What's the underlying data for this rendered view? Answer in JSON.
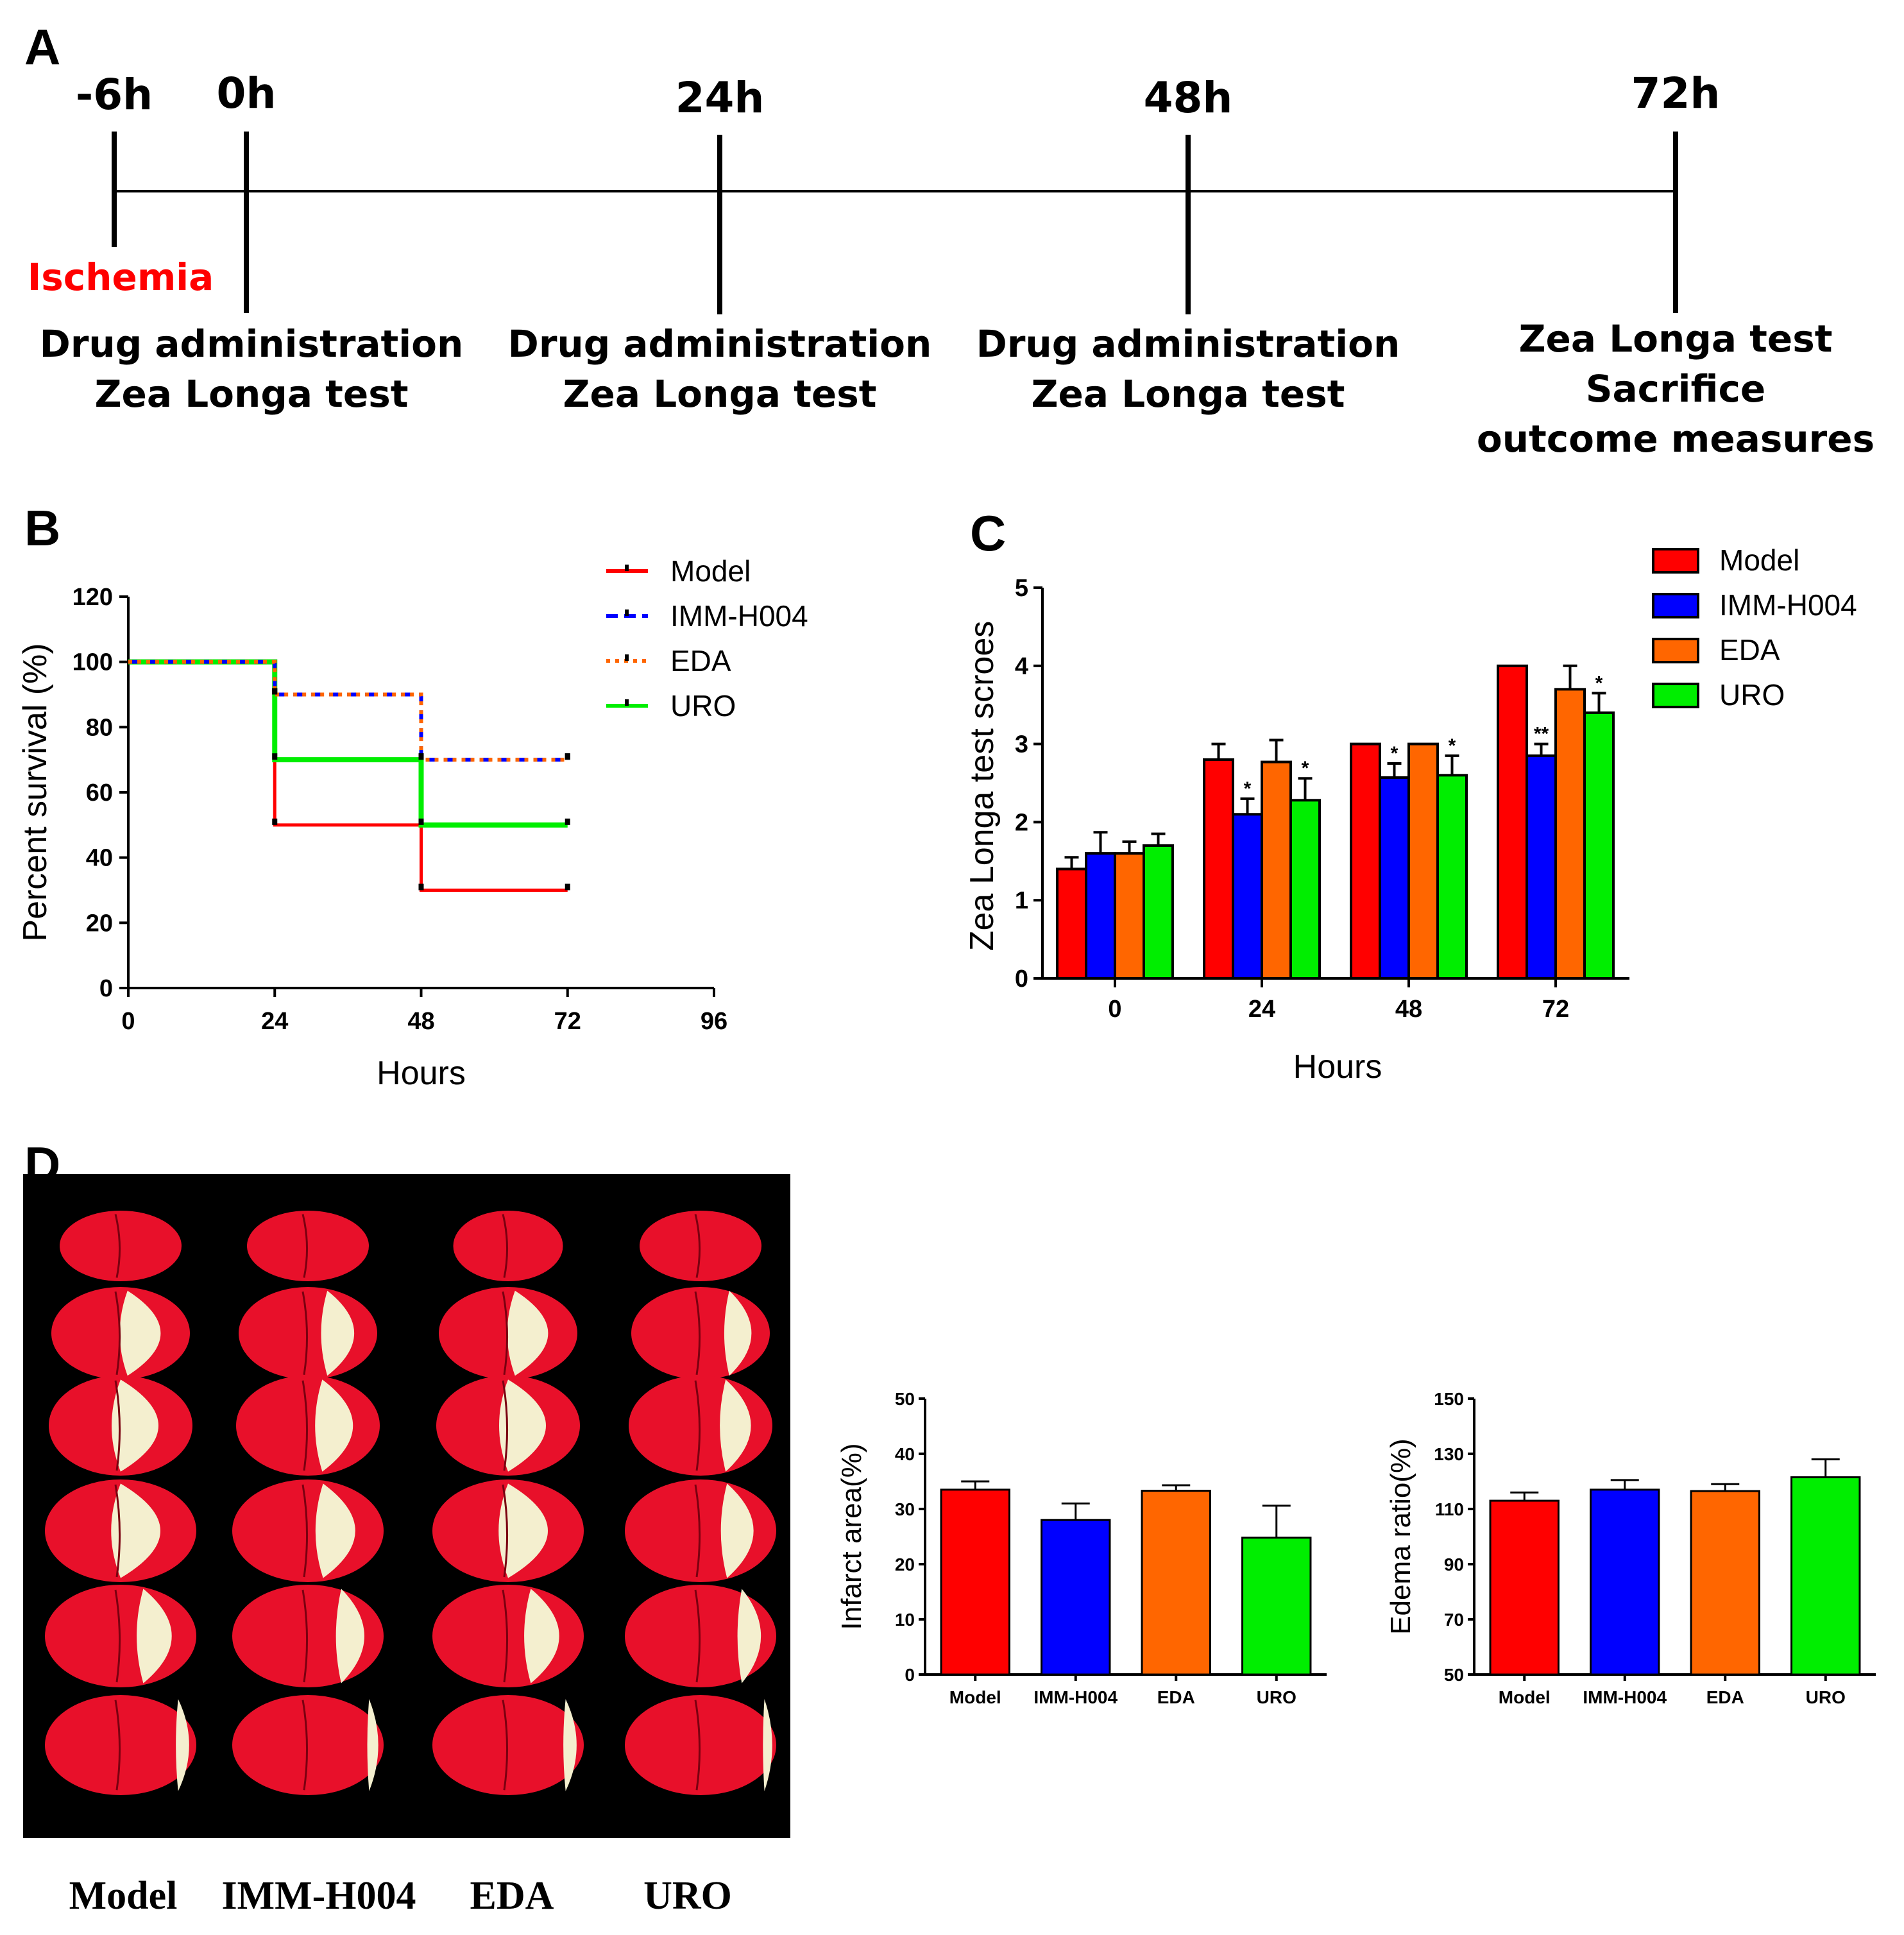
{
  "panel_labels": {
    "a": "A",
    "b": "B",
    "c": "C",
    "d": "D"
  },
  "colors": {
    "model": "#ff0000",
    "imm": "#0000ff",
    "eda": "#ff6600",
    "uro": "#00ee00",
    "axis": "#000000",
    "photo_bg": "#000000"
  },
  "timeline": {
    "ticks": [
      {
        "time": "-6h",
        "lines": [
          "Ischemia"
        ],
        "highlight": true
      },
      {
        "time": "0h",
        "lines": [
          "Drug administration",
          "Zea Longa test"
        ]
      },
      {
        "time": "24h",
        "lines": [
          "Drug administration",
          "Zea Longa test"
        ]
      },
      {
        "time": "48h",
        "lines": [
          "Drug administration",
          "Zea Longa test"
        ]
      },
      {
        "time": "72h",
        "lines": [
          "Zea Longa test",
          "Sacrifice",
          "outcome measures"
        ]
      }
    ]
  },
  "chart_data": [
    {
      "id": "B",
      "type": "line",
      "subtype": "survival-step",
      "xlabel": "Hours",
      "ylabel": "Percent survival (%)",
      "xlim": [
        0,
        96
      ],
      "ylim": [
        0,
        120
      ],
      "xticks": [
        0,
        24,
        48,
        72,
        96
      ],
      "yticks": [
        0,
        20,
        40,
        60,
        80,
        100,
        120
      ],
      "legend_position": "top-right",
      "series": [
        {
          "name": "Model",
          "color_key": "model",
          "style": "solid",
          "x": [
            0,
            24,
            48,
            72
          ],
          "y": [
            100,
            50,
            30,
            30
          ]
        },
        {
          "name": "IMM-H004",
          "color_key": "imm",
          "style": "dashed",
          "x": [
            0,
            24,
            48,
            72
          ],
          "y": [
            100,
            90,
            70,
            70
          ]
        },
        {
          "name": "EDA",
          "color_key": "eda",
          "style": "dotted",
          "x": [
            0,
            24,
            48,
            72
          ],
          "y": [
            100,
            90,
            70,
            70
          ]
        },
        {
          "name": "URO",
          "color_key": "uro",
          "style": "solid",
          "x": [
            0,
            24,
            48,
            72
          ],
          "y": [
            100,
            70,
            50,
            50
          ]
        }
      ]
    },
    {
      "id": "C",
      "type": "bar",
      "xlabel": "Hours",
      "ylabel": "Zea Longa test scroes",
      "ylim": [
        0,
        5
      ],
      "yticks": [
        0,
        1,
        2,
        3,
        4,
        5
      ],
      "categories": [
        "0",
        "24",
        "48",
        "72"
      ],
      "legend_position": "top-right",
      "series": [
        {
          "name": "Model",
          "color_key": "model",
          "values": [
            1.4,
            2.8,
            3.0,
            4.0
          ],
          "errors": [
            0.15,
            0.2,
            0.0,
            0.0
          ],
          "sig": [
            "",
            "",
            "",
            ""
          ]
        },
        {
          "name": "IMM-H004",
          "color_key": "imm",
          "values": [
            1.6,
            2.1,
            2.57,
            2.85
          ],
          "errors": [
            0.27,
            0.2,
            0.18,
            0.15
          ],
          "sig": [
            "",
            "*",
            "*",
            "**"
          ]
        },
        {
          "name": "EDA",
          "color_key": "eda",
          "values": [
            1.6,
            2.77,
            3.0,
            3.7
          ],
          "errors": [
            0.15,
            0.28,
            0.0,
            0.3
          ],
          "sig": [
            "",
            "",
            "",
            ""
          ]
        },
        {
          "name": "URO",
          "color_key": "uro",
          "values": [
            1.7,
            2.28,
            2.6,
            3.4
          ],
          "errors": [
            0.15,
            0.28,
            0.25,
            0.25
          ],
          "sig": [
            "",
            "*",
            "*",
            "*"
          ]
        }
      ]
    },
    {
      "id": "D1",
      "type": "bar",
      "ylabel": "Infarct area(%)",
      "ylim": [
        0,
        50
      ],
      "yticks": [
        0,
        10,
        20,
        30,
        40,
        50
      ],
      "categories": [
        "Model",
        "IMM-H004",
        "EDA",
        "URO"
      ],
      "color_keys": [
        "model",
        "imm",
        "eda",
        "uro"
      ],
      "values": [
        33.5,
        28,
        33.3,
        24.8
      ],
      "errors": [
        1.5,
        3,
        1,
        5.8
      ]
    },
    {
      "id": "D2",
      "type": "bar",
      "ylabel": "Edema ratio(%)",
      "ylim": [
        50,
        150
      ],
      "yticks": [
        50,
        70,
        90,
        110,
        130,
        150
      ],
      "categories": [
        "Model",
        "IMM-H004",
        "EDA",
        "URO"
      ],
      "color_keys": [
        "model",
        "imm",
        "eda",
        "uro"
      ],
      "values": [
        113,
        117,
        116.5,
        121.5
      ],
      "errors": [
        3,
        3.5,
        2.5,
        6.5
      ]
    }
  ],
  "photo": {
    "labels": [
      "Model",
      "IMM-H004",
      "EDA",
      "URO"
    ],
    "rows": 6
  }
}
